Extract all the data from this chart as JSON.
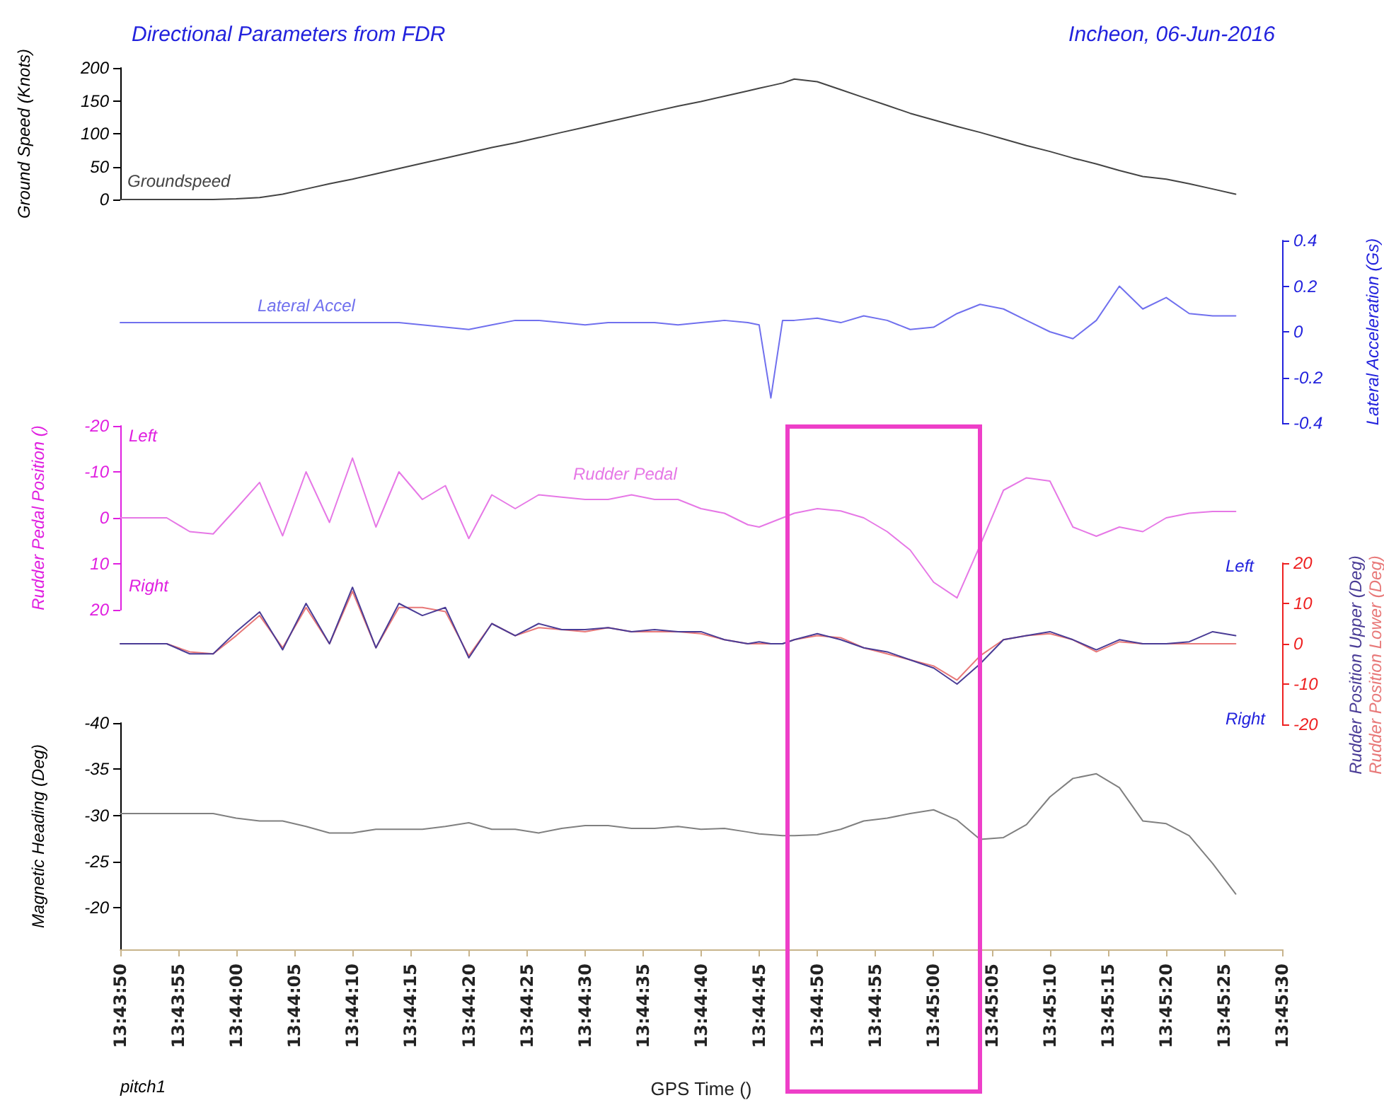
{
  "chart_data": [
    {
      "type": "line",
      "title": "Directional Parameters from FDR",
      "subtitle": "Incheon, 06-Jun-2016",
      "ylabel": "Ground Speed (Knots)",
      "tick_labels": "y",
      "xlim": [
        13.73056,
        13.75833
      ],
      "ylim": [
        0,
        200
      ],
      "yticks": [
        0,
        50,
        100,
        150,
        200
      ],
      "x": [
        13.73056,
        13.73111,
        13.73167,
        13.73222,
        13.73278,
        13.73333,
        13.73389,
        13.73444,
        13.735,
        13.73556,
        13.73611,
        13.73667,
        13.73722,
        13.73778,
        13.73833,
        13.73889,
        13.73944,
        13.74,
        13.74056,
        13.74111,
        13.74167,
        13.74222,
        13.74278,
        13.74333,
        13.74389,
        13.74444,
        13.745,
        13.74556,
        13.74583,
        13.74611,
        13.74639,
        13.74667,
        13.74722,
        13.74778,
        13.74833,
        13.74889,
        13.74944,
        13.75,
        13.75056,
        13.75111,
        13.75167,
        13.75222,
        13.75278,
        13.75333,
        13.75389,
        13.75444,
        13.755,
        13.75556,
        13.75611,
        13.75667,
        13.75722
      ],
      "series": [
        {
          "name": "Groundspeed",
          "color": "#444444",
          "values": [
            0,
            0,
            0,
            0,
            0,
            1,
            3,
            8,
            16,
            24,
            31,
            39,
            47,
            55,
            63,
            71,
            79,
            86,
            94,
            102,
            110,
            118,
            126,
            134,
            142,
            149,
            157,
            165,
            169,
            173,
            177,
            183,
            179,
            167,
            155,
            143,
            131,
            121,
            111,
            102,
            92,
            82,
            73,
            63,
            54,
            44,
            35,
            31,
            24,
            16,
            8
          ]
        }
      ]
    },
    {
      "type": "line",
      "y2label": "Lateral Acceleration (Gs)",
      "tick_labels": "y",
      "xlim": [
        13.73056,
        13.75833
      ],
      "y2lim": [
        -0.4,
        0.4
      ],
      "y2ticks": [
        -0.4,
        -0.2,
        0.0,
        0.2,
        0.4
      ],
      "x": [
        13.73056,
        13.73111,
        13.73167,
        13.73222,
        13.73278,
        13.73333,
        13.73389,
        13.73444,
        13.735,
        13.73556,
        13.73611,
        13.73667,
        13.73722,
        13.73778,
        13.73833,
        13.73889,
        13.73944,
        13.74,
        13.74056,
        13.74111,
        13.74167,
        13.74222,
        13.74278,
        13.74333,
        13.74389,
        13.74444,
        13.745,
        13.74556,
        13.74583,
        13.74611,
        13.74639,
        13.74667,
        13.74722,
        13.74778,
        13.74833,
        13.74889,
        13.74944,
        13.75,
        13.75056,
        13.75111,
        13.75167,
        13.75222,
        13.75278,
        13.75333,
        13.75389,
        13.75444,
        13.755,
        13.75556,
        13.75611,
        13.75667,
        13.75722
      ],
      "series": [
        {
          "name": "Lateral Accel",
          "color": "#7070ee",
          "axis": "y2",
          "values": [
            0.04,
            0.04,
            0.04,
            0.04,
            0.04,
            0.04,
            0.04,
            0.04,
            0.04,
            0.04,
            0.04,
            0.04,
            0.04,
            0.03,
            0.02,
            0.01,
            0.03,
            0.05,
            0.05,
            0.04,
            0.03,
            0.04,
            0.04,
            0.04,
            0.03,
            0.04,
            0.05,
            0.04,
            0.03,
            -0.29,
            0.05,
            0.05,
            0.06,
            0.04,
            0.07,
            0.05,
            0.01,
            0.02,
            0.08,
            0.12,
            0.1,
            0.05,
            0.0,
            -0.03,
            0.05,
            0.2,
            0.1,
            0.15,
            0.08,
            0.07,
            0.07
          ]
        }
      ]
    },
    {
      "type": "line",
      "ylabel": "Rudder Pedal Position ()",
      "annotations": [
        "Left",
        "Right"
      ],
      "tick_labels": "y",
      "xlim": [
        13.73056,
        13.75833
      ],
      "ylim": [
        20,
        -20
      ],
      "yticks": [
        -20,
        -10,
        0,
        10,
        20
      ],
      "x": [
        13.73056,
        13.73111,
        13.73167,
        13.73222,
        13.73278,
        13.73333,
        13.73389,
        13.73444,
        13.735,
        13.73556,
        13.73611,
        13.73667,
        13.73722,
        13.73778,
        13.73833,
        13.73889,
        13.73944,
        13.74,
        13.74056,
        13.74111,
        13.74167,
        13.74222,
        13.74278,
        13.74333,
        13.74389,
        13.74444,
        13.745,
        13.74556,
        13.74583,
        13.74611,
        13.74639,
        13.74667,
        13.74722,
        13.74778,
        13.74833,
        13.74889,
        13.74944,
        13.75,
        13.75056,
        13.75111,
        13.75167,
        13.75222,
        13.75278,
        13.75333,
        13.75389,
        13.75444,
        13.755,
        13.75556,
        13.75611,
        13.75667,
        13.75722
      ],
      "series": [
        {
          "name": "Rudder Pedal",
          "color": "#e678e6",
          "values": [
            0,
            0,
            0,
            3,
            3.5,
            -2,
            -7.7,
            3.9,
            -10,
            1,
            -13,
            2,
            -10,
            -4,
            -7,
            4.5,
            -5,
            -2,
            -5,
            -4.5,
            -4,
            -4,
            -5,
            -4,
            -4,
            -2,
            -1,
            1.5,
            2,
            1,
            0,
            -1,
            -2,
            -1.5,
            0,
            3,
            7,
            14,
            17.4,
            6,
            -6,
            -8.7,
            -8,
            2,
            4,
            2,
            3,
            0,
            -1,
            -1.4,
            -1.4
          ]
        }
      ]
    },
    {
      "type": "line",
      "annotations": [
        "Left",
        "Right"
      ],
      "tick_labels": "y",
      "xlim": [
        13.73056,
        13.75833
      ],
      "y2lim": [
        -20,
        20
      ],
      "y2ticks": [
        -20,
        -10,
        0,
        10,
        20
      ],
      "x": [
        13.73056,
        13.73111,
        13.73167,
        13.73222,
        13.73278,
        13.73333,
        13.73389,
        13.73444,
        13.735,
        13.73556,
        13.73611,
        13.73667,
        13.73722,
        13.73778,
        13.73833,
        13.73889,
        13.73944,
        13.74,
        13.74056,
        13.74111,
        13.74167,
        13.74222,
        13.74278,
        13.74333,
        13.74389,
        13.74444,
        13.745,
        13.74556,
        13.74583,
        13.74611,
        13.74639,
        13.74667,
        13.74722,
        13.74778,
        13.74833,
        13.74889,
        13.74944,
        13.75,
        13.75056,
        13.75111,
        13.75167,
        13.75222,
        13.75278,
        13.75333,
        13.75389,
        13.75444,
        13.755,
        13.75556,
        13.75611,
        13.75667,
        13.75722
      ],
      "series": [
        {
          "name": "Rudder Position Lower (Deg)",
          "color": "#e87878",
          "axis": "y2",
          "values": [
            0,
            0,
            0,
            -2,
            -2.5,
            2,
            7,
            -1,
            9,
            0,
            13,
            -1,
            9,
            9,
            8,
            -3,
            5,
            2,
            4,
            3.5,
            3,
            4,
            3,
            3,
            3,
            2.5,
            1,
            0,
            0,
            0,
            0,
            1,
            2,
            1.5,
            -1,
            -2.5,
            -4,
            -5.5,
            -9,
            -3,
            1,
            2,
            2.5,
            1,
            -2,
            0.5,
            0,
            0,
            0,
            0,
            0
          ]
        },
        {
          "name": "Rudder Position Upper (Deg)",
          "color": "#4a3c96",
          "axis": "y2",
          "values": [
            0,
            0,
            0,
            -2.5,
            -2.5,
            3,
            7.9,
            -1.5,
            10,
            0,
            14,
            -1,
            10,
            7,
            9,
            -3.5,
            5,
            2,
            5,
            3.5,
            3.5,
            4,
            3,
            3.5,
            3,
            3,
            1,
            0,
            0.5,
            0,
            0,
            1,
            2.5,
            1,
            -1,
            -2,
            -4,
            -6,
            -10,
            -5,
            1,
            2,
            3,
            1,
            -1.5,
            1,
            0,
            0,
            0.5,
            3,
            2
          ]
        }
      ]
    },
    {
      "type": "line",
      "ylabel": "Magnetic Heading (Deg)",
      "xlabel": "GPS Time ()",
      "annotations": [
        "pitch1"
      ],
      "xlim": [
        13.73056,
        13.75833
      ],
      "ylim": [
        -15.5,
        -40
      ],
      "yticks": [
        -40,
        -35,
        -30,
        -25,
        -20
      ],
      "xticks": [
        {
          "value": 13.73056,
          "label": "13:43:50"
        },
        {
          "value": 13.73194,
          "label": "13:43:55"
        },
        {
          "value": 13.73333,
          "label": "13:44:00"
        },
        {
          "value": 13.73472,
          "label": "13:44:05"
        },
        {
          "value": 13.73611,
          "label": "13:44:10"
        },
        {
          "value": 13.7375,
          "label": "13:44:15"
        },
        {
          "value": 13.73889,
          "label": "13:44:20"
        },
        {
          "value": 13.74028,
          "label": "13:44:25"
        },
        {
          "value": 13.74167,
          "label": "13:44:30"
        },
        {
          "value": 13.74306,
          "label": "13:44:35"
        },
        {
          "value": 13.74444,
          "label": "13:44:40"
        },
        {
          "value": 13.74583,
          "label": "13:44:45"
        },
        {
          "value": 13.74722,
          "label": "13:44:50"
        },
        {
          "value": 13.74861,
          "label": "13:44:55"
        },
        {
          "value": 13.75,
          "label": "13:45:00"
        },
        {
          "value": 13.75139,
          "label": "13:45:05"
        },
        {
          "value": 13.75278,
          "label": "13:45:10"
        },
        {
          "value": 13.75417,
          "label": "13:45:15"
        },
        {
          "value": 13.75556,
          "label": "13:45:20"
        },
        {
          "value": 13.75694,
          "label": "13:45:25"
        },
        {
          "value": 13.75833,
          "label": "13:45:30"
        }
      ],
      "x": [
        13.73056,
        13.73111,
        13.73167,
        13.73222,
        13.73278,
        13.73333,
        13.73389,
        13.73444,
        13.735,
        13.73556,
        13.73611,
        13.73667,
        13.73722,
        13.73778,
        13.73833,
        13.73889,
        13.73944,
        13.74,
        13.74056,
        13.74111,
        13.74167,
        13.74222,
        13.74278,
        13.74333,
        13.74389,
        13.74444,
        13.745,
        13.74556,
        13.74583,
        13.74611,
        13.74639,
        13.74667,
        13.74722,
        13.74778,
        13.74833,
        13.74889,
        13.74944,
        13.75,
        13.75056,
        13.75111,
        13.75167,
        13.75222,
        13.75278,
        13.75333,
        13.75389,
        13.75444,
        13.755,
        13.75556,
        13.75611,
        13.75667,
        13.75722
      ],
      "series": [
        {
          "color": "#808080",
          "values": [
            -30.2,
            -30.2,
            -30.2,
            -30.2,
            -30.2,
            -29.7,
            -29.4,
            -29.4,
            -28.8,
            -28.1,
            -28.1,
            -28.5,
            -28.5,
            -28.5,
            -28.8,
            -29.2,
            -28.5,
            -28.5,
            -28.1,
            -28.6,
            -28.9,
            -28.9,
            -28.6,
            -28.6,
            -28.8,
            -28.5,
            -28.6,
            -28.2,
            -28,
            -27.9,
            -27.8,
            -27.8,
            -27.9,
            -28.5,
            -29.4,
            -29.7,
            -30.2,
            -30.6,
            -29.5,
            -27.4,
            -27.6,
            -29,
            -32,
            -34,
            -34.5,
            -33,
            -29.4,
            -29.1,
            -27.8,
            -24.8,
            -21.5
          ]
        }
      ]
    }
  ]
}
